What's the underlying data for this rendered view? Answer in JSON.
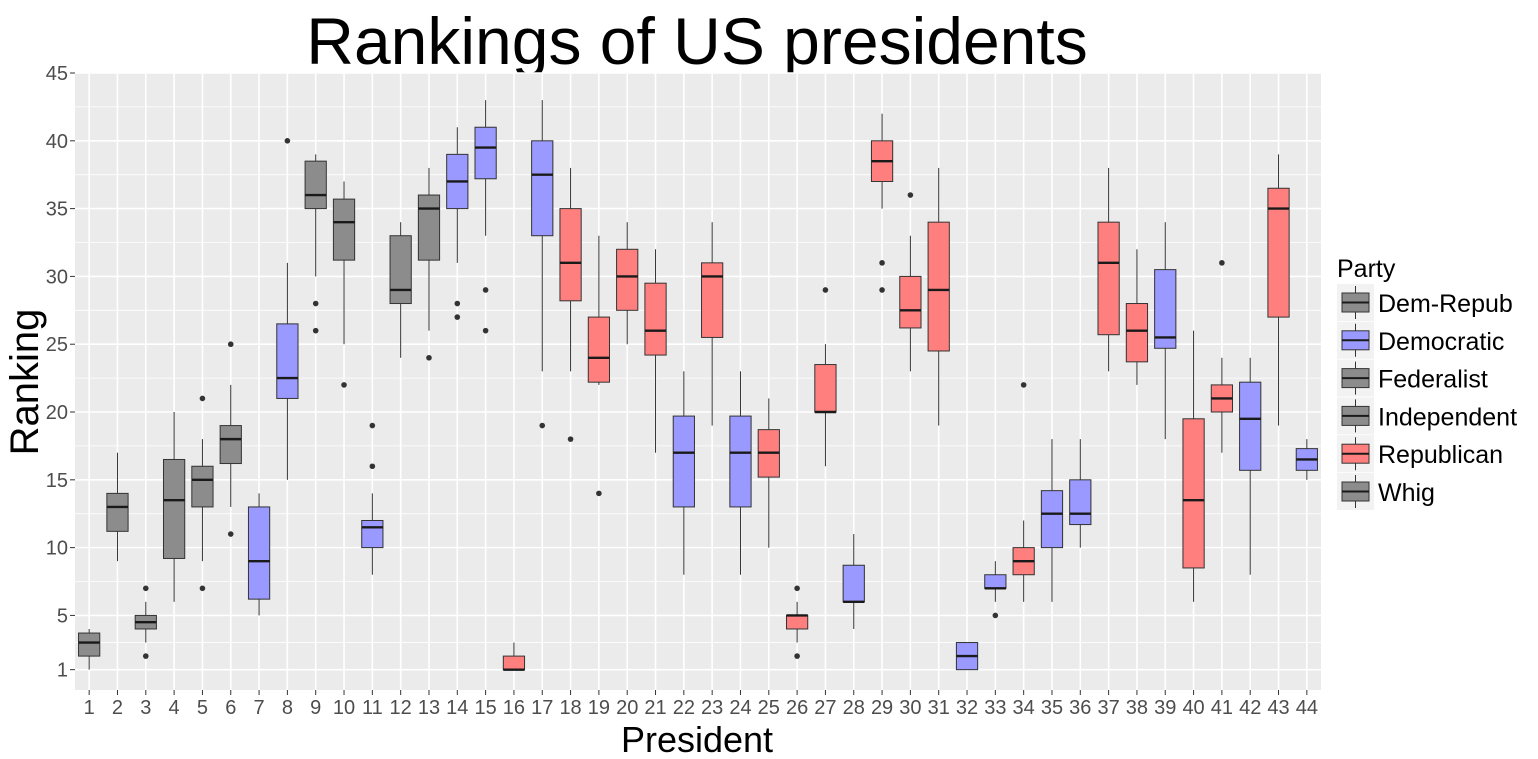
{
  "chart_data": {
    "type": "boxplot",
    "title": "Rankings of US presidents",
    "xlabel": "President",
    "ylabel": "Ranking",
    "ylim": [
      -0.5,
      45
    ],
    "y_ticks": [
      1,
      5,
      10,
      15,
      20,
      25,
      30,
      35,
      40,
      45
    ],
    "grid": true,
    "legend": {
      "title": "Party",
      "placement": "right",
      "entries": [
        "Dem-Repub",
        "Democratic",
        "Federalist",
        "Independent",
        "Republican",
        "Whig"
      ]
    },
    "party_colors": {
      "Dem-Repub": "#8c8c8c",
      "Democratic": "#9999ff",
      "Federalist": "#8c8c8c",
      "Independent": "#8c8c8c",
      "Republican": "#ff7f7f",
      "Whig": "#8c8c8c"
    },
    "categories": [
      "1",
      "2",
      "3",
      "4",
      "5",
      "6",
      "7",
      "8",
      "9",
      "10",
      "11",
      "12",
      "13",
      "14",
      "15",
      "16",
      "17",
      "18",
      "19",
      "20",
      "21",
      "22",
      "23",
      "24",
      "25",
      "26",
      "27",
      "28",
      "29",
      "30",
      "31",
      "32",
      "33",
      "34",
      "35",
      "36",
      "37",
      "38",
      "39",
      "40",
      "41",
      "42",
      "43",
      "44"
    ],
    "boxes": [
      {
        "president": "1",
        "party": "Independent",
        "whisker_low": 1,
        "q1": 2,
        "median": 3,
        "q3": 3.7,
        "whisker_high": 4,
        "outliers": []
      },
      {
        "president": "2",
        "party": "Federalist",
        "whisker_low": 9,
        "q1": 11.2,
        "median": 13,
        "q3": 14,
        "whisker_high": 17,
        "outliers": []
      },
      {
        "president": "3",
        "party": "Dem-Repub",
        "whisker_low": 3,
        "q1": 4,
        "median": 4.5,
        "q3": 5,
        "whisker_high": 6,
        "outliers": [
          2,
          7
        ]
      },
      {
        "president": "4",
        "party": "Dem-Repub",
        "whisker_low": 6,
        "q1": 9.2,
        "median": 13.5,
        "q3": 16.5,
        "whisker_high": 20,
        "outliers": []
      },
      {
        "president": "5",
        "party": "Dem-Repub",
        "whisker_low": 9,
        "q1": 13,
        "median": 15,
        "q3": 16,
        "whisker_high": 18,
        "outliers": [
          7,
          21
        ]
      },
      {
        "president": "6",
        "party": "Dem-Repub",
        "whisker_low": 13,
        "q1": 16.2,
        "median": 18,
        "q3": 19,
        "whisker_high": 22,
        "outliers": [
          11,
          25
        ]
      },
      {
        "president": "7",
        "party": "Democratic",
        "whisker_low": 5,
        "q1": 6.2,
        "median": 9,
        "q3": 13,
        "whisker_high": 14,
        "outliers": []
      },
      {
        "president": "8",
        "party": "Democratic",
        "whisker_low": 15,
        "q1": 21,
        "median": 22.5,
        "q3": 26.5,
        "whisker_high": 31,
        "outliers": [
          40
        ]
      },
      {
        "president": "9",
        "party": "Whig",
        "whisker_low": 30,
        "q1": 35,
        "median": 36,
        "q3": 38.5,
        "whisker_high": 39,
        "outliers": [
          26,
          28
        ]
      },
      {
        "president": "10",
        "party": "Whig",
        "whisker_low": 25,
        "q1": 31.2,
        "median": 34,
        "q3": 35.7,
        "whisker_high": 37,
        "outliers": [
          22
        ]
      },
      {
        "president": "11",
        "party": "Democratic",
        "whisker_low": 8,
        "q1": 10,
        "median": 11.5,
        "q3": 12,
        "whisker_high": 14,
        "outliers": [
          16,
          19
        ]
      },
      {
        "president": "12",
        "party": "Whig",
        "whisker_low": 24,
        "q1": 28,
        "median": 29,
        "q3": 33,
        "whisker_high": 34,
        "outliers": []
      },
      {
        "president": "13",
        "party": "Whig",
        "whisker_low": 26,
        "q1": 31.2,
        "median": 35,
        "q3": 36,
        "whisker_high": 38,
        "outliers": [
          24
        ]
      },
      {
        "president": "14",
        "party": "Democratic",
        "whisker_low": 31,
        "q1": 35,
        "median": 37,
        "q3": 39,
        "whisker_high": 41,
        "outliers": [
          27,
          28
        ]
      },
      {
        "president": "15",
        "party": "Democratic",
        "whisker_low": 33,
        "q1": 37.2,
        "median": 39.5,
        "q3": 41,
        "whisker_high": 43,
        "outliers": [
          26,
          29
        ]
      },
      {
        "president": "16",
        "party": "Republican",
        "whisker_low": 1,
        "q1": 1,
        "median": 1,
        "q3": 2,
        "whisker_high": 3,
        "outliers": []
      },
      {
        "president": "17",
        "party": "Democratic",
        "whisker_low": 23,
        "q1": 33,
        "median": 37.5,
        "q3": 40,
        "whisker_high": 43,
        "outliers": [
          19
        ]
      },
      {
        "president": "18",
        "party": "Republican",
        "whisker_low": 23,
        "q1": 28.2,
        "median": 31,
        "q3": 35,
        "whisker_high": 38,
        "outliers": [
          18
        ]
      },
      {
        "president": "19",
        "party": "Republican",
        "whisker_low": 22,
        "q1": 22.2,
        "median": 24,
        "q3": 27,
        "whisker_high": 33,
        "outliers": [
          14
        ]
      },
      {
        "president": "20",
        "party": "Republican",
        "whisker_low": 25,
        "q1": 27.5,
        "median": 30,
        "q3": 32,
        "whisker_high": 34,
        "outliers": []
      },
      {
        "president": "21",
        "party": "Republican",
        "whisker_low": 17,
        "q1": 24.2,
        "median": 26,
        "q3": 29.5,
        "whisker_high": 32,
        "outliers": []
      },
      {
        "president": "22",
        "party": "Democratic",
        "whisker_low": 8,
        "q1": 13,
        "median": 17,
        "q3": 19.7,
        "whisker_high": 23,
        "outliers": []
      },
      {
        "president": "23",
        "party": "Republican",
        "whisker_low": 19,
        "q1": 25.5,
        "median": 30,
        "q3": 31,
        "whisker_high": 34,
        "outliers": []
      },
      {
        "president": "24",
        "party": "Democratic",
        "whisker_low": 8,
        "q1": 13,
        "median": 17,
        "q3": 19.7,
        "whisker_high": 23,
        "outliers": []
      },
      {
        "president": "25",
        "party": "Republican",
        "whisker_low": 10,
        "q1": 15.2,
        "median": 17,
        "q3": 18.7,
        "whisker_high": 21,
        "outliers": []
      },
      {
        "president": "26",
        "party": "Republican",
        "whisker_low": 3,
        "q1": 4,
        "median": 5,
        "q3": 5,
        "whisker_high": 6,
        "outliers": [
          2,
          7
        ]
      },
      {
        "president": "27",
        "party": "Republican",
        "whisker_low": 16,
        "q1": 20,
        "median": 20,
        "q3": 23.5,
        "whisker_high": 25,
        "outliers": [
          29
        ]
      },
      {
        "president": "28",
        "party": "Democratic",
        "whisker_low": 4,
        "q1": 6,
        "median": 6,
        "q3": 8.7,
        "whisker_high": 11,
        "outliers": []
      },
      {
        "president": "29",
        "party": "Republican",
        "whisker_low": 35,
        "q1": 37,
        "median": 38.5,
        "q3": 40,
        "whisker_high": 42,
        "outliers": [
          29,
          31
        ]
      },
      {
        "president": "30",
        "party": "Republican",
        "whisker_low": 23,
        "q1": 26.2,
        "median": 27.5,
        "q3": 30,
        "whisker_high": 33,
        "outliers": [
          36
        ]
      },
      {
        "president": "31",
        "party": "Republican",
        "whisker_low": 19,
        "q1": 24.5,
        "median": 29,
        "q3": 34,
        "whisker_high": 38,
        "outliers": []
      },
      {
        "president": "32",
        "party": "Democratic",
        "whisker_low": 1,
        "q1": 1,
        "median": 2,
        "q3": 3,
        "whisker_high": 3,
        "outliers": []
      },
      {
        "president": "33",
        "party": "Democratic",
        "whisker_low": 6,
        "q1": 7,
        "median": 7,
        "q3": 8,
        "whisker_high": 9,
        "outliers": [
          5
        ]
      },
      {
        "president": "34",
        "party": "Republican",
        "whisker_low": 6,
        "q1": 8,
        "median": 9,
        "q3": 10,
        "whisker_high": 12,
        "outliers": [
          22
        ]
      },
      {
        "president": "35",
        "party": "Democratic",
        "whisker_low": 6,
        "q1": 10,
        "median": 12.5,
        "q3": 14.2,
        "whisker_high": 18,
        "outliers": []
      },
      {
        "president": "36",
        "party": "Democratic",
        "whisker_low": 10,
        "q1": 11.7,
        "median": 12.5,
        "q3": 15,
        "whisker_high": 18,
        "outliers": []
      },
      {
        "president": "37",
        "party": "Republican",
        "whisker_low": 23,
        "q1": 25.7,
        "median": 31,
        "q3": 34,
        "whisker_high": 38,
        "outliers": []
      },
      {
        "president": "38",
        "party": "Republican",
        "whisker_low": 22,
        "q1": 23.7,
        "median": 26,
        "q3": 28,
        "whisker_high": 32,
        "outliers": []
      },
      {
        "president": "39",
        "party": "Democratic",
        "whisker_low": 18,
        "q1": 24.7,
        "median": 25.5,
        "q3": 30.5,
        "whisker_high": 34,
        "outliers": []
      },
      {
        "president": "40",
        "party": "Republican",
        "whisker_low": 6,
        "q1": 8.5,
        "median": 13.5,
        "q3": 19.5,
        "whisker_high": 26,
        "outliers": []
      },
      {
        "president": "41",
        "party": "Republican",
        "whisker_low": 17,
        "q1": 20,
        "median": 21,
        "q3": 22,
        "whisker_high": 24,
        "outliers": [
          31
        ]
      },
      {
        "president": "42",
        "party": "Democratic",
        "whisker_low": 8,
        "q1": 15.7,
        "median": 19.5,
        "q3": 22.2,
        "whisker_high": 24,
        "outliers": []
      },
      {
        "president": "43",
        "party": "Republican",
        "whisker_low": 19,
        "q1": 27,
        "median": 35,
        "q3": 36.5,
        "whisker_high": 39,
        "outliers": []
      },
      {
        "president": "44",
        "party": "Democratic",
        "whisker_low": 15,
        "q1": 15.7,
        "median": 16.5,
        "q3": 17.3,
        "whisker_high": 18,
        "outliers": []
      }
    ]
  }
}
